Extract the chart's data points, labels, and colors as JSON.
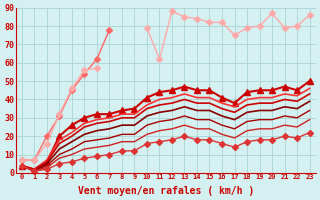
{
  "xlabel": "Vent moyen/en rafales ( km/h )",
  "background_color": "#d4f0f0",
  "grid_color": "#b0d8d8",
  "x": [
    0,
    1,
    2,
    3,
    4,
    5,
    6,
    7,
    8,
    9,
    10,
    11,
    12,
    13,
    14,
    15,
    16,
    17,
    18,
    19,
    20,
    21,
    22,
    23
  ],
  "ylim": [
    0,
    90
  ],
  "yticks": [
    0,
    10,
    20,
    30,
    40,
    50,
    60,
    70,
    80,
    90
  ],
  "series": [
    {
      "color": "#ff6666",
      "linewidth": 1.0,
      "marker": "D",
      "markersize": 3,
      "data": [
        7,
        7,
        20,
        31,
        45,
        54,
        62,
        78,
        null,
        null,
        null,
        null,
        null,
        null,
        null,
        null,
        null,
        null,
        null,
        null,
        null,
        null,
        null,
        null
      ]
    },
    {
      "color": "#ffaaaa",
      "linewidth": 1.0,
      "marker": "D",
      "markersize": 3,
      "data": [
        7,
        7,
        16,
        32,
        46,
        56,
        57,
        null,
        null,
        null,
        null,
        null,
        null,
        null,
        null,
        null,
        null,
        null,
        null,
        null,
        null,
        null,
        null,
        null
      ]
    },
    {
      "color": "#ffaaaa",
      "linewidth": 1.0,
      "marker": "D",
      "markersize": 3,
      "data": [
        null,
        null,
        null,
        null,
        null,
        null,
        null,
        null,
        null,
        null,
        79,
        62,
        88,
        85,
        84,
        82,
        82,
        75,
        79,
        80,
        87,
        79,
        80,
        86
      ]
    },
    {
      "color": "#cc0000",
      "linewidth": 1.5,
      "marker": "^",
      "markersize": 4,
      "data": [
        4,
        1,
        6,
        20,
        26,
        30,
        32,
        32,
        34,
        35,
        41,
        44,
        45,
        47,
        45,
        45,
        41,
        38,
        44,
        45,
        45,
        47,
        45,
        50
      ]
    },
    {
      "color": "#ff3333",
      "linewidth": 1.2,
      "marker": null,
      "markersize": 0,
      "data": [
        4,
        2,
        7,
        18,
        22,
        27,
        29,
        30,
        32,
        32,
        37,
        40,
        41,
        43,
        41,
        41,
        38,
        36,
        40,
        41,
        41,
        43,
        42,
        46
      ]
    },
    {
      "color": "#cc0000",
      "linewidth": 1.2,
      "marker": null,
      "markersize": 0,
      "data": [
        4,
        2,
        6,
        16,
        20,
        25,
        27,
        28,
        30,
        30,
        35,
        37,
        38,
        40,
        38,
        38,
        35,
        33,
        37,
        38,
        38,
        40,
        39,
        43
      ]
    },
    {
      "color": "#880000",
      "linewidth": 1.2,
      "marker": null,
      "markersize": 0,
      "data": [
        4,
        1,
        5,
        13,
        17,
        21,
        23,
        24,
        26,
        26,
        31,
        33,
        34,
        36,
        34,
        34,
        31,
        29,
        33,
        34,
        34,
        36,
        35,
        39
      ]
    },
    {
      "color": "#aa0000",
      "linewidth": 1.0,
      "marker": null,
      "markersize": 0,
      "data": [
        4,
        1,
        4,
        10,
        13,
        17,
        18,
        19,
        21,
        21,
        26,
        28,
        29,
        31,
        29,
        29,
        26,
        24,
        28,
        29,
        29,
        31,
        30,
        34
      ]
    },
    {
      "color": "#cc2222",
      "linewidth": 1.0,
      "marker": null,
      "markersize": 0,
      "data": [
        4,
        1,
        3,
        8,
        10,
        13,
        14,
        15,
        17,
        17,
        21,
        23,
        24,
        26,
        24,
        24,
        21,
        19,
        23,
        24,
        24,
        26,
        25,
        29
      ]
    },
    {
      "color": "#dd3333",
      "linewidth": 1.0,
      "marker": "D",
      "markersize": 3,
      "data": [
        4,
        1,
        2,
        5,
        6,
        8,
        9,
        10,
        12,
        12,
        16,
        17,
        18,
        20,
        18,
        18,
        16,
        14,
        17,
        18,
        18,
        20,
        19,
        22
      ]
    }
  ]
}
